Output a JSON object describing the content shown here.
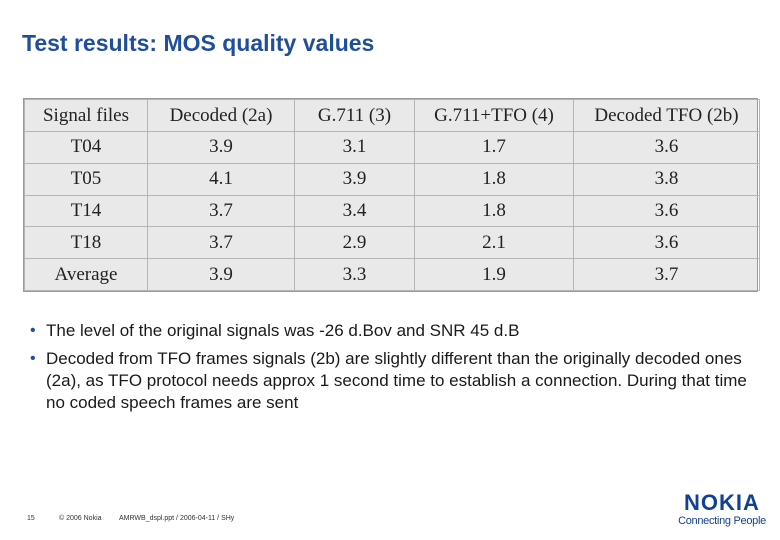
{
  "slide": {
    "title": "Test results: MOS quality values"
  },
  "table": {
    "headers": [
      "Signal files",
      "Decoded (2a)",
      "G.711 (3)",
      "G.711+TFO (4)",
      "Decoded TFO (2b)"
    ],
    "rows": [
      [
        "T04",
        "3.9",
        "3.1",
        "1.7",
        "3.6"
      ],
      [
        "T05",
        "4.1",
        "3.9",
        "1.8",
        "3.8"
      ],
      [
        "T14",
        "3.7",
        "3.4",
        "1.8",
        "3.6"
      ],
      [
        "T18",
        "3.7",
        "2.9",
        "2.1",
        "3.6"
      ],
      [
        "Average",
        "3.9",
        "3.3",
        "1.9",
        "3.7"
      ]
    ]
  },
  "bullets": [
    "The level of the original signals was -26 d.Bov and SNR 45 d.B",
    "Decoded from TFO frames signals (2b) are slightly different than the originally decoded ones (2a), as TFO protocol needs approx 1 second time to establish a connection. During that time no coded speech frames are sent"
  ],
  "bullet_symbol": "•",
  "footer": {
    "page_number": "15",
    "copyright": "© 2006 Nokia",
    "file_info": "AMRWB_dspl.ppt / 2006-04-11 / SHy"
  },
  "logo": {
    "name": "NOKIA",
    "tagline": "Connecting People",
    "color": "#124191"
  },
  "colors": {
    "title": "#1f4e9c",
    "table_background": "#e9e9e9"
  }
}
